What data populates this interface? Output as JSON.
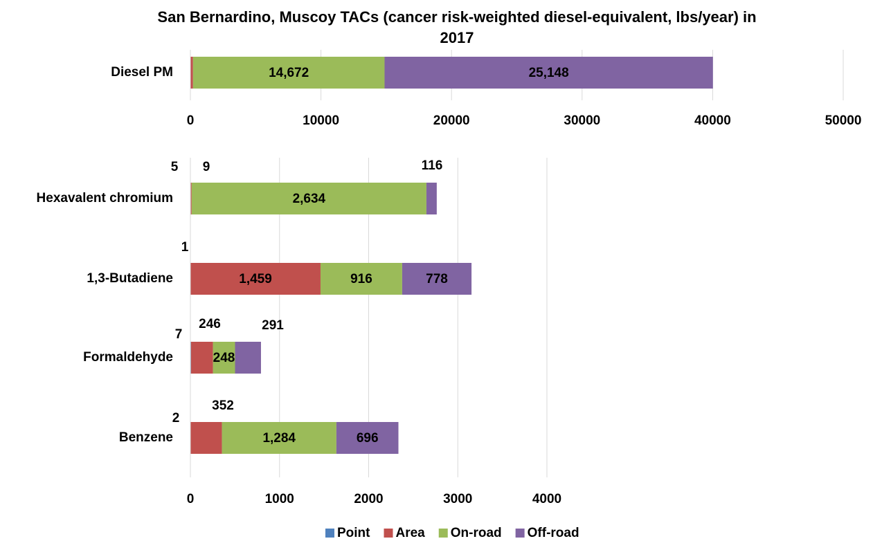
{
  "chart_data": [
    {
      "type": "stacked_barh",
      "title": "San Bernardino, Muscoy TACs (cancer risk-weighted diesel-equivalent, lbs/year) in 2017",
      "categories": [
        "Diesel PM"
      ],
      "series": [
        {
          "color": "#4f81bd",
          "values": [
            20
          ]
        },
        {
          "color": "#c0504d",
          "values": [
            180
          ]
        },
        {
          "color": "#9bbb59",
          "values": [
            14672
          ],
          "value_labels": [
            "14,672"
          ]
        },
        {
          "color": "#8064a2",
          "values": [
            25148
          ],
          "value_labels": [
            "25,148"
          ]
        }
      ],
      "xlim": [
        0,
        50000
      ],
      "xticks": [
        0,
        10000,
        20000,
        30000,
        40000,
        50000
      ],
      "grid": true
    },
    {
      "type": "stacked_barh",
      "categories": [
        "Hexavalent chromium",
        "1,3-Butadiene",
        "Formaldehyde",
        "Benzene"
      ],
      "series": [
        {
          "name": "Point",
          "color": "#4f81bd",
          "values": [
            5,
            1,
            7,
            2
          ]
        },
        {
          "name": "Area",
          "color": "#c0504d",
          "values": [
            9,
            1459,
            246,
            352
          ],
          "value_labels": [
            "9",
            "1,459",
            "246",
            "352"
          ]
        },
        {
          "name": "On-road",
          "color": "#9bbb59",
          "values": [
            2634,
            916,
            248,
            1284
          ],
          "value_labels": [
            "2,634",
            "916",
            "248",
            "1,284"
          ]
        },
        {
          "name": "Off-road",
          "color": "#8064a2",
          "values": [
            116,
            778,
            291,
            696
          ]
        }
      ],
      "xlim": [
        0,
        4000
      ],
      "xticks": [
        0,
        1000,
        2000,
        3000,
        4000
      ],
      "grid": true,
      "data_labels": true,
      "legend": "bottom"
    }
  ]
}
